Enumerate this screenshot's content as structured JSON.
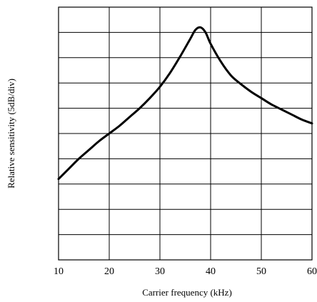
{
  "chart_data": {
    "type": "line",
    "title": "",
    "xlabel": "Carrier frequency (kHz)",
    "ylabel": "Relative sensitivity (5dB/div)",
    "xlim": [
      10,
      60
    ],
    "ylim": [
      0,
      10
    ],
    "x_ticks": [
      10,
      20,
      30,
      40,
      50,
      60
    ],
    "x_tick_labels": [
      "10",
      "20",
      "30",
      "40",
      "50",
      "60"
    ],
    "y_tick_labels": [],
    "grid": true,
    "legend": "none",
    "series": [
      {
        "color": "#000000",
        "points": [
          [
            10.0,
            3.2
          ],
          [
            12.0,
            3.6
          ],
          [
            14.0,
            4.0
          ],
          [
            16.0,
            4.35
          ],
          [
            18.0,
            4.7
          ],
          [
            20.0,
            5.0
          ],
          [
            22.0,
            5.3
          ],
          [
            24.0,
            5.65
          ],
          [
            26.0,
            6.0
          ],
          [
            28.0,
            6.4
          ],
          [
            30.0,
            6.85
          ],
          [
            32.0,
            7.4
          ],
          [
            34.0,
            8.05
          ],
          [
            36.0,
            8.75
          ],
          [
            37.0,
            9.1
          ],
          [
            38.0,
            9.2
          ],
          [
            39.0,
            9.0
          ],
          [
            40.0,
            8.55
          ],
          [
            42.0,
            7.85
          ],
          [
            44.0,
            7.3
          ],
          [
            46.0,
            6.95
          ],
          [
            48.0,
            6.65
          ],
          [
            50.0,
            6.4
          ],
          [
            52.0,
            6.15
          ],
          [
            54.0,
            5.95
          ],
          [
            56.0,
            5.75
          ],
          [
            58.0,
            5.55
          ],
          [
            60.0,
            5.4
          ]
        ]
      }
    ]
  }
}
